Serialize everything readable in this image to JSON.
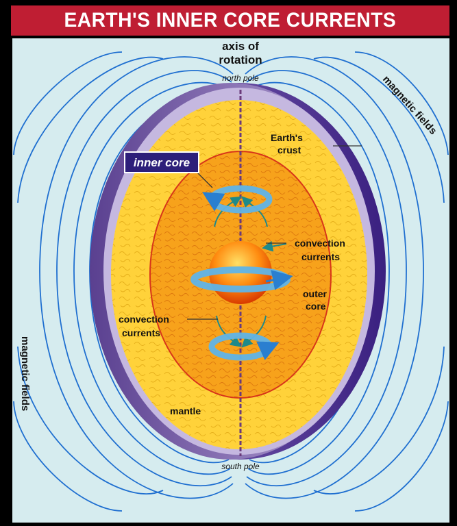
{
  "title": "EARTH'S INNER CORE CURRENTS",
  "labels": {
    "axis_line1": "axis of",
    "axis_line2": "rotation",
    "north_pole": "north pole",
    "south_pole": "south pole",
    "magnetic_right": "magnetic fields",
    "magnetic_left": "magnetic fields",
    "crust_line1": "Earth's",
    "crust_line2": "crust",
    "inner_core": "inner core",
    "convection_right_1": "convection",
    "convection_right_2": "currents",
    "convection_left_1": "convection",
    "convection_left_2": "currents",
    "outer_core_1": "outer",
    "outer_core_2": "core",
    "mantle": "mantle"
  },
  "colors": {
    "title_bg": "#bf1e33",
    "panel_bg": "#d6ecef",
    "field_lines": "#1f6fd0",
    "crust": "#a898c8",
    "crust_shadow": "#4a2f86",
    "mantle": "#ffd23a",
    "outer_core": "#f7a21b",
    "inner_core": "#ff6a00",
    "current_arrows": "#5fb4e8",
    "axis": "#6a3a7a"
  }
}
